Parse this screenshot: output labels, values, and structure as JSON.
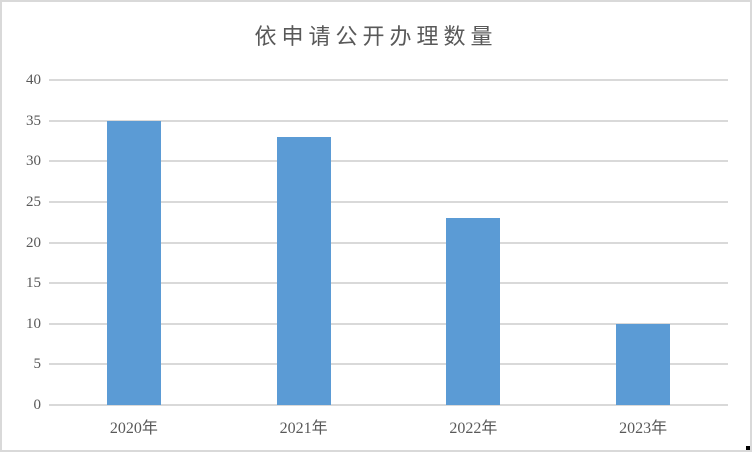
{
  "frame": {
    "background_color": "#ffffff",
    "border_color": "#d9d9d9"
  },
  "chart_data": {
    "type": "bar",
    "title": "依申请公开办理数量",
    "categories": [
      "2020年",
      "2021年",
      "2022年",
      "2023年"
    ],
    "values": [
      35,
      33,
      23,
      10
    ],
    "xlabel": "",
    "ylabel": "",
    "ylim": [
      0,
      40
    ],
    "yticks": [
      0,
      5,
      10,
      15,
      20,
      25,
      30,
      35,
      40
    ],
    "grid": "horizontal",
    "legend": "none",
    "bar_color": "#5b9bd5",
    "gridline_color": "#d9d9d9",
    "text_color": "#595959",
    "title_color": "#595959"
  }
}
